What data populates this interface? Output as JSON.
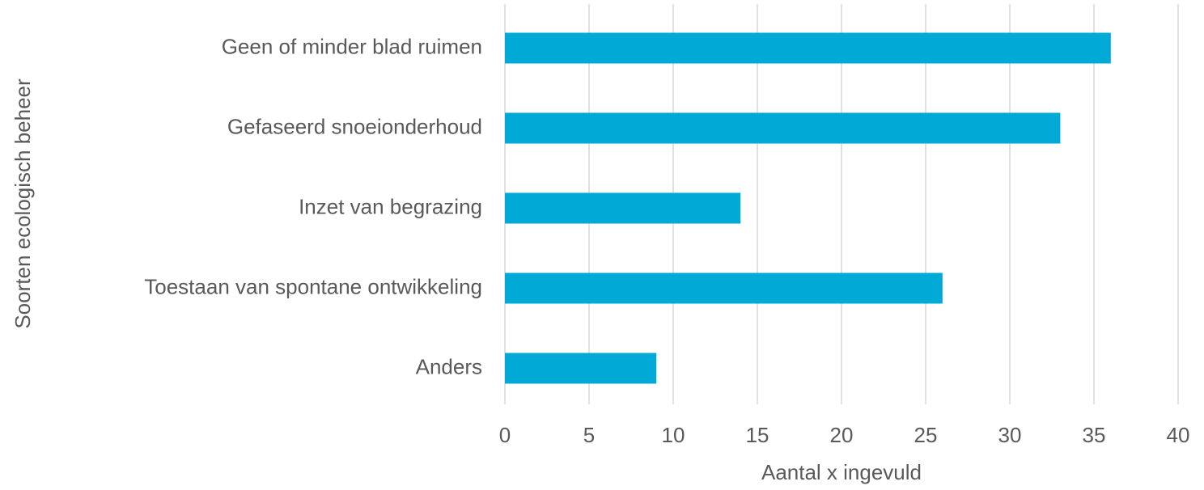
{
  "chart_data": {
    "type": "bar",
    "x_label": "Aantal x ingevuld",
    "y_label": "Soorten ecologisch beheer",
    "categories": [
      "Geen of minder blad ruimen",
      "Gefaseerd snoeionderhoud",
      "Inzet van begrazing",
      "Toestaan van spontane ontwikkeling",
      "Anders"
    ],
    "values": [
      36,
      33,
      14,
      26,
      9
    ],
    "color": "#00a9d6",
    "xlim": [
      0,
      40
    ],
    "xticks": [
      0,
      5,
      10,
      15,
      20,
      25,
      30,
      35,
      40
    ],
    "grid": true
  }
}
